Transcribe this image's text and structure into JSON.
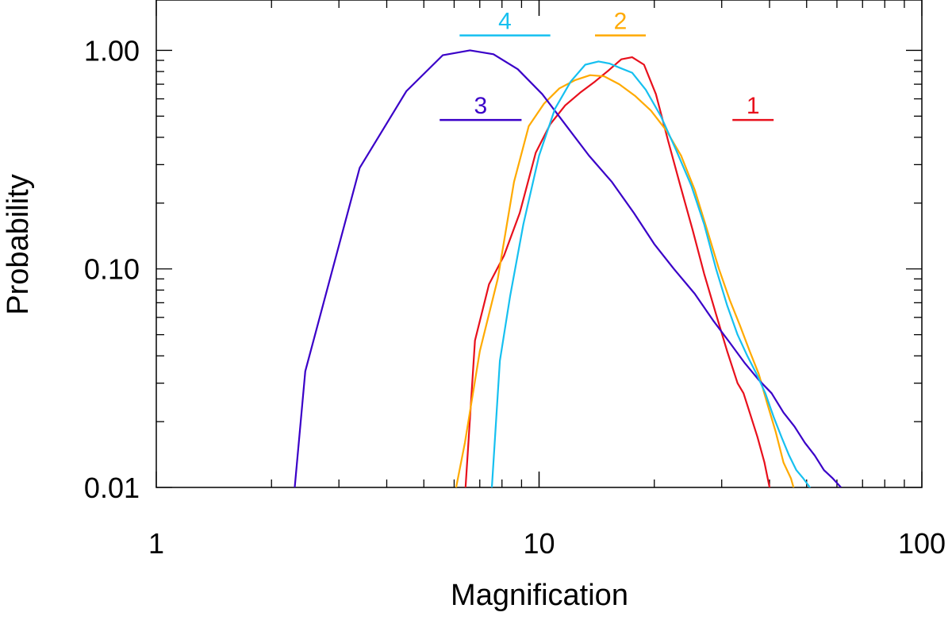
{
  "chart_data": {
    "type": "line",
    "xlabel": "Magnification",
    "ylabel": "Probability",
    "xscale": "log",
    "yscale": "log",
    "xlim": [
      1,
      100
    ],
    "ylim": [
      0.01,
      1.7
    ],
    "grid": false,
    "x_ticks": [
      {
        "value": 1,
        "label": "1"
      },
      {
        "value": 10,
        "label": "10"
      },
      {
        "value": 100,
        "label": "100"
      }
    ],
    "y_ticks": [
      {
        "value": 0.01,
        "label": "0.01"
      },
      {
        "value": 0.1,
        "label": "0.10"
      },
      {
        "value": 1,
        "label": "1.00"
      }
    ],
    "series": [
      {
        "name": "1",
        "color": "#e8101c",
        "label_x": [
          32,
          41
        ],
        "label_y": 0.48,
        "x": [
          6.4,
          6.8,
          7.4,
          8.1,
          8.9,
          9.8,
          10.7,
          11.7,
          12.8,
          14.0,
          15.2,
          16.4,
          17.5,
          18.8,
          20.2,
          21.7,
          23.4,
          25.2,
          27.0,
          29.0,
          31.0,
          33.0,
          34.2,
          35.5,
          37.2,
          38.8,
          40.5
        ],
        "y": [
          0.009,
          0.047,
          0.085,
          0.115,
          0.18,
          0.34,
          0.46,
          0.56,
          0.64,
          0.72,
          0.81,
          0.91,
          0.93,
          0.86,
          0.63,
          0.39,
          0.24,
          0.15,
          0.095,
          0.062,
          0.042,
          0.03,
          0.027,
          0.022,
          0.017,
          0.013,
          0.009
        ]
      },
      {
        "name": "2",
        "color": "#ffaa00",
        "label_x": [
          14,
          19
        ],
        "label_y": 1.17,
        "x": [
          6.0,
          6.4,
          7.0,
          7.8,
          8.6,
          9.4,
          10.3,
          11.3,
          12.4,
          13.6,
          14.8,
          16.2,
          17.8,
          19.6,
          21.5,
          23.5,
          25.5,
          27.5,
          29.5,
          31.5,
          33.5,
          35.5,
          37.5,
          39.5,
          41.5,
          43.5,
          45.5,
          47.0
        ],
        "y": [
          0.009,
          0.016,
          0.042,
          0.09,
          0.25,
          0.45,
          0.57,
          0.67,
          0.73,
          0.77,
          0.76,
          0.7,
          0.62,
          0.53,
          0.43,
          0.33,
          0.23,
          0.15,
          0.1,
          0.072,
          0.055,
          0.042,
          0.033,
          0.024,
          0.018,
          0.013,
          0.011,
          0.009
        ]
      },
      {
        "name": "3",
        "color": "#3a00c8",
        "label_x": [
          5.5,
          9.0
        ],
        "label_y": 0.48,
        "x": [
          2.3,
          2.45,
          3.4,
          4.5,
          5.6,
          6.6,
          7.6,
          8.8,
          10.2,
          11.8,
          13.5,
          15.5,
          17.7,
          20.0,
          22.5,
          25.5,
          28.5,
          31.5,
          34.5,
          37.5,
          40.5,
          43.5,
          46.5,
          49.5,
          52.5,
          55.5,
          58.5,
          61.5
        ],
        "y": [
          0.01,
          0.034,
          0.29,
          0.65,
          0.95,
          1.0,
          0.96,
          0.82,
          0.63,
          0.45,
          0.33,
          0.25,
          0.18,
          0.13,
          0.1,
          0.077,
          0.058,
          0.046,
          0.037,
          0.031,
          0.027,
          0.022,
          0.019,
          0.016,
          0.014,
          0.012,
          0.011,
          0.01
        ]
      },
      {
        "name": "4",
        "color": "#16c0f0",
        "label_x": [
          6.2,
          10.7
        ],
        "label_y": 1.17,
        "x": [
          7.5,
          7.9,
          8.4,
          9.1,
          10.0,
          11.0,
          12.1,
          13.2,
          14.3,
          15.3,
          16.3,
          17.5,
          19.0,
          20.8,
          22.8,
          25.0,
          27.0,
          29.0,
          31.0,
          33.0,
          35.0,
          37.0,
          39.0,
          41.0,
          43.0,
          45.0,
          47.0,
          49.0,
          51.0,
          53.0
        ],
        "y": [
          0.009,
          0.038,
          0.075,
          0.16,
          0.33,
          0.54,
          0.72,
          0.86,
          0.89,
          0.87,
          0.83,
          0.79,
          0.66,
          0.5,
          0.35,
          0.24,
          0.16,
          0.1,
          0.068,
          0.05,
          0.04,
          0.033,
          0.027,
          0.021,
          0.017,
          0.014,
          0.012,
          0.011,
          0.01,
          0.009
        ]
      }
    ]
  }
}
